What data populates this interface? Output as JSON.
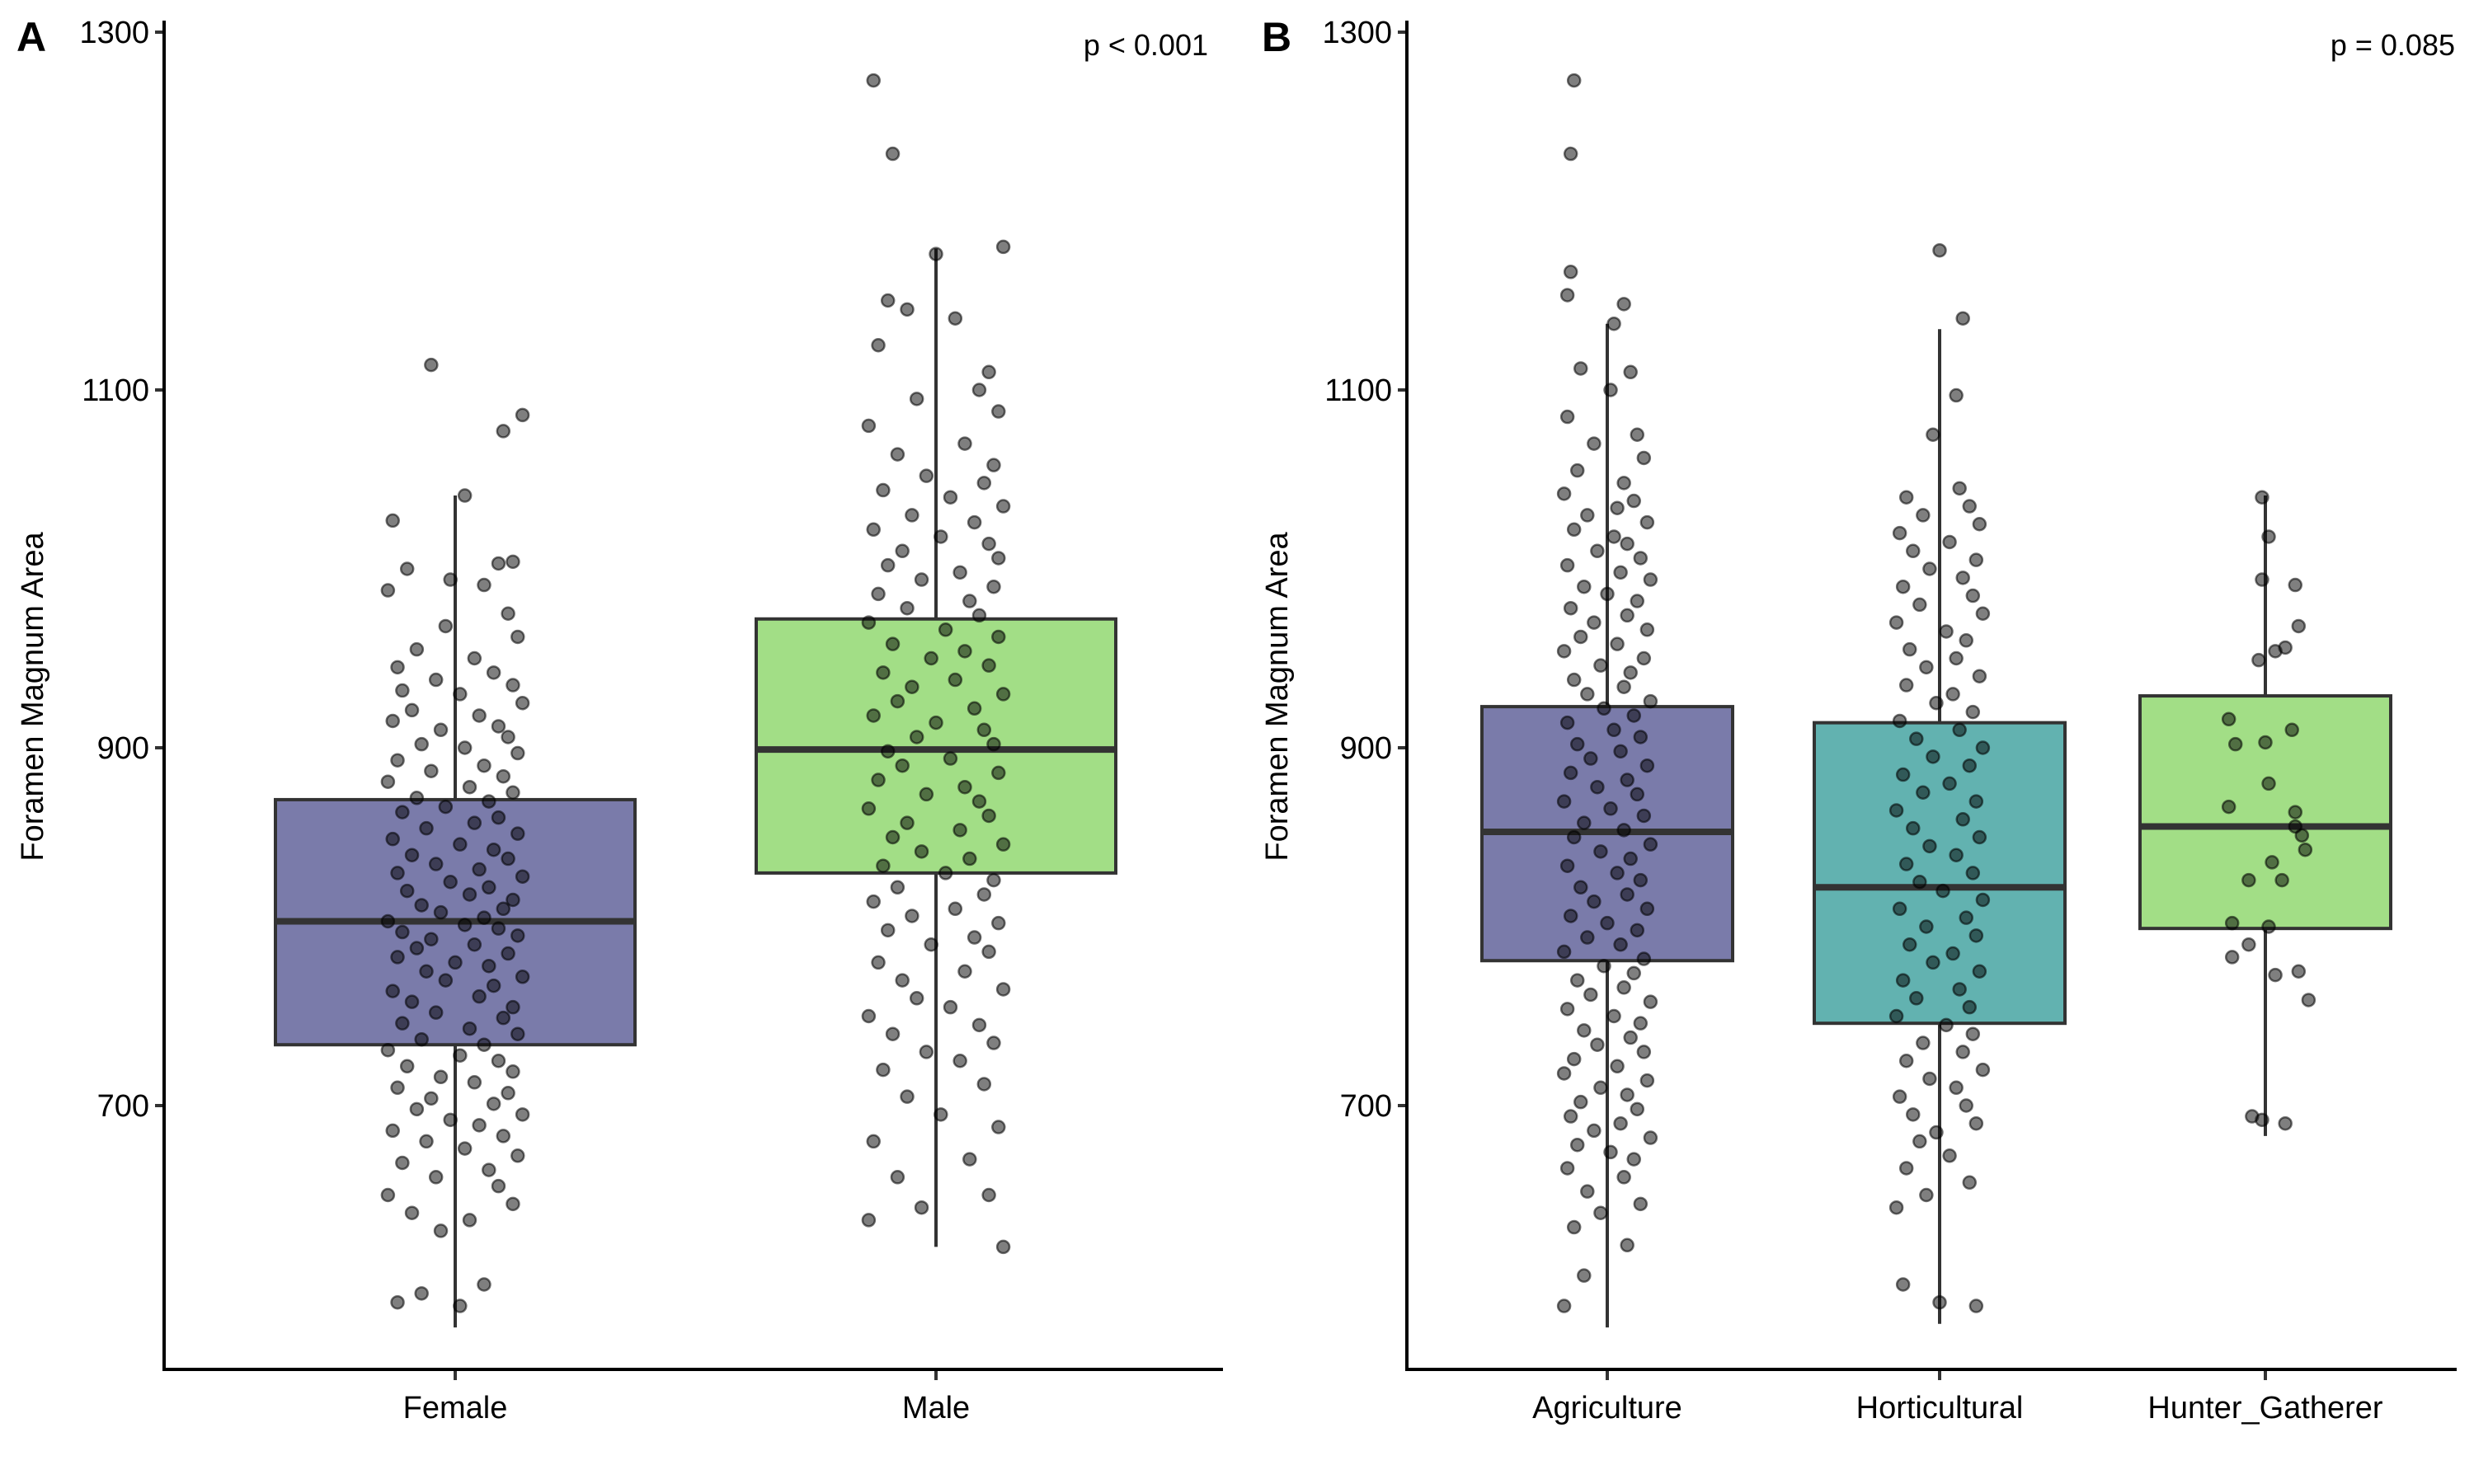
{
  "chart_data": [
    {
      "type": "box",
      "panel_label": "A",
      "annotation": "p < 0.001",
      "xlabel": "",
      "ylabel": "Foramen Magnum Area",
      "ylim": [
        553,
        1306
      ],
      "yticks": [
        700,
        900,
        1100,
        1300
      ],
      "ytick_labels": [
        "700",
        "900",
        "1100",
        "1300"
      ],
      "grid": false,
      "legend": "none",
      "categories": [
        "Female",
        "Male"
      ],
      "colors": [
        "#7A7BAA",
        "#A2DE86"
      ],
      "boxes": [
        {
          "name": "Female",
          "whisker_low": 576,
          "q1": 734,
          "median": 803,
          "q3": 871,
          "whisker_high": 1041
        },
        {
          "name": "Male",
          "whisker_low": 621,
          "q1": 830,
          "median": 899,
          "q3": 972,
          "whisker_high": 1179
        }
      ],
      "points": [
        {
          "group": "Female",
          "values": [
            1114,
            1086,
            1077,
            1041,
            1027,
            1004,
            1003,
            1000,
            994,
            991,
            988,
            975,
            968,
            962,
            955,
            950,
            945,
            942,
            938,
            935,
            932,
            930,
            925,
            921,
            918,
            915,
            912,
            910,
            906,
            902,
            900,
            897,
            893,
            890,
            887,
            884,
            881,
            878,
            875,
            872,
            870,
            867,
            864,
            861,
            858,
            855,
            852,
            849,
            846,
            843,
            840,
            838,
            835,
            832,
            830,
            828,
            825,
            822,
            820,
            818,
            815,
            812,
            810,
            808,
            805,
            803,
            801,
            799,
            797,
            795,
            793,
            790,
            788,
            785,
            783,
            780,
            778,
            775,
            772,
            770,
            767,
            764,
            761,
            758,
            755,
            752,
            749,
            746,
            743,
            740,
            737,
            734,
            731,
            728,
            725,
            722,
            719,
            716,
            713,
            710,
            707,
            704,
            701,
            698,
            695,
            692,
            689,
            686,
            683,
            680,
            676,
            672,
            668,
            664,
            660,
            655,
            650,
            645,
            640,
            636,
            630,
            600,
            595,
            590,
            588
          ],
          "jitter": [
            -0.05,
            0.14,
            0.1,
            0.02,
            -0.13,
            0.12,
            0.09,
            -0.1,
            -0.01,
            0.06,
            -0.14,
            0.11,
            -0.02,
            0.13,
            -0.08,
            0.04,
            -0.12,
            0.08,
            -0.04,
            0.12,
            -0.11,
            0.01,
            0.14,
            -0.09,
            0.05,
            -0.13,
            0.09,
            -0.03,
            0.11,
            -0.07,
            0.02,
            0.13,
            -0.12,
            0.06,
            -0.05,
            0.1,
            -0.14,
            0.03,
            0.12,
            -0.08,
            0.07,
            -0.02,
            -0.11,
            0.09,
            0.04,
            -0.06,
            0.13,
            -0.13,
            0.01,
            0.08,
            -0.09,
            0.11,
            -0.04,
            0.05,
            -0.12,
            0.14,
            -0.01,
            0.07,
            -0.1,
            0.03,
            0.12,
            -0.07,
            0.1,
            -0.03,
            0.06,
            -0.14,
            0.02,
            0.09,
            -0.11,
            0.13,
            -0.05,
            0.04,
            -0.08,
            0.11,
            -0.12,
            0.0,
            0.07,
            -0.06,
            0.14,
            -0.02,
            0.08,
            -0.13,
            0.05,
            -0.09,
            0.12,
            -0.04,
            0.1,
            -0.11,
            0.03,
            0.13,
            -0.07,
            0.06,
            -0.14,
            0.01,
            0.09,
            -0.1,
            0.12,
            -0.03,
            0.04,
            -0.12,
            0.11,
            -0.05,
            0.08,
            -0.08,
            0.14,
            -0.01,
            0.05,
            -0.13,
            0.1,
            -0.06,
            0.02,
            0.13,
            -0.11,
            0.07,
            -0.04,
            0.09,
            -0.14,
            0.12,
            -0.09,
            0.03,
            -0.03,
            0.06,
            -0.07,
            -0.12,
            0.01
          ]
        },
        {
          "group": "Male",
          "values": [
            1273,
            1232,
            1180,
            1176,
            1150,
            1145,
            1140,
            1125,
            1110,
            1100,
            1095,
            1088,
            1080,
            1070,
            1064,
            1058,
            1052,
            1048,
            1044,
            1040,
            1035,
            1030,
            1026,
            1022,
            1018,
            1014,
            1010,
            1006,
            1002,
            998,
            994,
            990,
            986,
            982,
            978,
            974,
            970,
            966,
            962,
            958,
            954,
            950,
            946,
            942,
            938,
            934,
            930,
            926,
            922,
            918,
            914,
            910,
            906,
            902,
            898,
            894,
            890,
            886,
            882,
            878,
            874,
            870,
            866,
            862,
            858,
            854,
            850,
            846,
            842,
            838,
            834,
            830,
            826,
            822,
            818,
            814,
            810,
            806,
            802,
            798,
            794,
            790,
            786,
            780,
            775,
            770,
            765,
            760,
            755,
            750,
            745,
            740,
            735,
            730,
            725,
            720,
            712,
            705,
            695,
            688,
            680,
            670,
            660,
            650,
            643,
            636,
            621
          ],
          "jitter": [
            -0.13,
            -0.09,
            0.14,
            0.0,
            -0.1,
            -0.06,
            0.04,
            -0.12,
            0.11,
            0.09,
            -0.04,
            0.13,
            -0.14,
            0.06,
            -0.08,
            0.12,
            -0.02,
            0.1,
            -0.11,
            0.03,
            0.14,
            -0.05,
            0.08,
            -0.13,
            0.01,
            0.11,
            -0.07,
            0.13,
            -0.1,
            0.05,
            -0.03,
            0.12,
            -0.12,
            0.07,
            -0.06,
            0.09,
            -0.14,
            0.02,
            0.13,
            -0.09,
            0.06,
            -0.01,
            0.11,
            -0.11,
            0.04,
            -0.05,
            0.14,
            -0.08,
            0.08,
            -0.13,
            0.0,
            0.1,
            -0.04,
            0.12,
            -0.1,
            0.03,
            -0.07,
            0.13,
            -0.12,
            0.06,
            -0.02,
            0.09,
            -0.14,
            0.11,
            -0.06,
            0.05,
            -0.09,
            0.14,
            -0.03,
            0.07,
            -0.11,
            0.02,
            0.12,
            -0.08,
            0.1,
            -0.13,
            0.04,
            -0.05,
            0.13,
            -0.1,
            0.08,
            -0.01,
            0.11,
            -0.12,
            0.06,
            -0.07,
            0.14,
            -0.04,
            0.03,
            -0.14,
            0.09,
            -0.09,
            0.12,
            -0.02,
            0.05,
            -0.11,
            0.1,
            -0.06,
            0.01,
            0.13,
            -0.13,
            0.07,
            -0.08,
            0.11,
            -0.03,
            -0.14,
            0.14
          ]
        }
      ]
    },
    {
      "type": "box",
      "panel_label": "B",
      "annotation": "p = 0.085",
      "xlabel": "",
      "ylabel": "Foramen Magnum Area",
      "ylim": [
        553,
        1306
      ],
      "yticks": [
        700,
        900,
        1100,
        1300
      ],
      "ytick_labels": [
        "700",
        "900",
        "1100",
        "1300"
      ],
      "grid": false,
      "legend": "none",
      "categories": [
        "Agriculture",
        "Horticultural",
        "Hunter_Gatherer"
      ],
      "colors": [
        "#7A7BAA",
        "#62B2B0",
        "#A2DE86"
      ],
      "boxes": [
        {
          "name": "Agriculture",
          "whisker_low": 576,
          "q1": 781,
          "median": 853,
          "q3": 923,
          "whisker_high": 1137
        },
        {
          "name": "Horticultural",
          "whisker_low": 578,
          "q1": 746,
          "median": 822,
          "q3": 914,
          "whisker_high": 1134
        },
        {
          "name": "Hunter_Gatherer",
          "whisker_low": 683,
          "q1": 799,
          "median": 856,
          "q3": 929,
          "whisker_high": 1041
        }
      ],
      "points": [
        {
          "group": "Agriculture",
          "values": [
            1273,
            1232,
            1166,
            1153,
            1148,
            1137,
            1112,
            1110,
            1100,
            1085,
            1075,
            1070,
            1062,
            1055,
            1048,
            1042,
            1038,
            1034,
            1030,
            1026,
            1022,
            1018,
            1014,
            1010,
            1006,
            1002,
            998,
            994,
            990,
            986,
            982,
            978,
            974,
            970,
            966,
            962,
            958,
            954,
            950,
            946,
            942,
            938,
            934,
            930,
            926,
            922,
            918,
            914,
            910,
            906,
            902,
            898,
            894,
            890,
            886,
            882,
            878,
            874,
            870,
            866,
            862,
            858,
            854,
            850,
            846,
            842,
            838,
            834,
            830,
            826,
            822,
            818,
            814,
            810,
            806,
            802,
            798,
            794,
            790,
            786,
            782,
            778,
            774,
            770,
            766,
            762,
            758,
            754,
            750,
            746,
            742,
            738,
            734,
            730,
            726,
            722,
            718,
            714,
            710,
            706,
            702,
            698,
            694,
            690,
            686,
            682,
            678,
            674,
            670,
            665,
            660,
            652,
            645,
            640,
            632,
            622,
            605,
            588
          ],
          "jitter": [
            -0.1,
            -0.11,
            -0.11,
            -0.12,
            0.05,
            0.02,
            -0.08,
            0.07,
            0.01,
            -0.12,
            0.09,
            -0.04,
            0.11,
            -0.09,
            0.05,
            -0.13,
            0.08,
            0.03,
            -0.06,
            0.12,
            -0.1,
            0.02,
            0.06,
            -0.03,
            0.1,
            -0.12,
            0.04,
            0.13,
            -0.07,
            0.0,
            0.09,
            -0.11,
            0.06,
            -0.04,
            0.12,
            -0.08,
            0.03,
            -0.13,
            0.11,
            -0.02,
            0.07,
            -0.1,
            0.05,
            -0.06,
            0.13,
            -0.01,
            0.08,
            -0.12,
            0.02,
            0.1,
            -0.09,
            0.04,
            -0.05,
            0.12,
            -0.11,
            0.06,
            -0.03,
            0.09,
            -0.13,
            0.01,
            0.11,
            -0.07,
            0.05,
            -0.1,
            0.13,
            -0.02,
            0.07,
            -0.12,
            0.03,
            0.1,
            -0.08,
            0.06,
            -0.04,
            0.12,
            -0.11,
            0.0,
            0.09,
            -0.06,
            0.04,
            -0.13,
            0.11,
            -0.01,
            0.08,
            -0.09,
            0.05,
            -0.05,
            0.13,
            -0.12,
            0.02,
            0.1,
            -0.07,
            0.07,
            -0.03,
            0.11,
            -0.1,
            0.03,
            -0.13,
            0.12,
            -0.02,
            0.06,
            -0.08,
            0.09,
            -0.11,
            0.04,
            -0.04,
            0.13,
            -0.09,
            0.01,
            0.08,
            -0.12,
            0.05,
            -0.06,
            0.1,
            -0.02,
            -0.1,
            0.06,
            -0.07,
            -0.13,
            0.07,
            -0.11
          ]
        },
        {
          "group": "Horticultural",
          "values": [
            1178,
            1140,
            1097,
            1075,
            1045,
            1040,
            1035,
            1030,
            1025,
            1020,
            1015,
            1010,
            1005,
            1000,
            995,
            990,
            985,
            980,
            975,
            970,
            965,
            960,
            955,
            950,
            945,
            940,
            935,
            930,
            925,
            920,
            915,
            910,
            905,
            900,
            895,
            890,
            885,
            880,
            875,
            870,
            865,
            860,
            855,
            850,
            845,
            840,
            835,
            830,
            825,
            820,
            815,
            810,
            805,
            800,
            795,
            790,
            785,
            780,
            775,
            770,
            765,
            760,
            755,
            750,
            745,
            740,
            735,
            730,
            725,
            720,
            715,
            710,
            705,
            700,
            695,
            690,
            685,
            680,
            672,
            665,
            657,
            650,
            643,
            600,
            590,
            588
          ],
          "jitter": [
            0.0,
            0.07,
            0.05,
            -0.02,
            0.06,
            -0.1,
            0.09,
            -0.05,
            0.12,
            -0.12,
            0.03,
            -0.08,
            0.11,
            -0.03,
            0.07,
            -0.11,
            0.1,
            -0.06,
            0.13,
            -0.13,
            0.02,
            0.08,
            -0.09,
            0.05,
            -0.04,
            0.12,
            -0.1,
            0.04,
            -0.01,
            0.1,
            -0.12,
            0.06,
            -0.07,
            0.13,
            -0.02,
            0.09,
            -0.11,
            0.03,
            -0.05,
            0.11,
            -0.13,
            0.07,
            -0.08,
            0.12,
            -0.03,
            0.05,
            -0.1,
            0.1,
            -0.06,
            0.01,
            0.13,
            -0.12,
            0.08,
            -0.04,
            0.11,
            -0.09,
            0.04,
            -0.02,
            0.12,
            -0.11,
            0.06,
            -0.07,
            0.09,
            -0.13,
            0.02,
            0.1,
            -0.05,
            0.07,
            -0.1,
            0.13,
            -0.03,
            0.05,
            -0.12,
            0.08,
            -0.08,
            0.11,
            -0.01,
            -0.06,
            0.03,
            -0.1,
            0.09,
            -0.04,
            -0.13,
            -0.11,
            0.0,
            0.11
          ]
        },
        {
          "group": "Hunter_Gatherer",
          "values": [
            1040,
            1018,
            994,
            991,
            968,
            956,
            954,
            949,
            916,
            910,
            903,
            902,
            880,
            867,
            864,
            856,
            851,
            843,
            836,
            826,
            826,
            802,
            800,
            790,
            783,
            775,
            773,
            759,
            694,
            692,
            690
          ],
          "jitter": [
            -0.01,
            0.01,
            -0.01,
            0.09,
            0.1,
            0.06,
            0.03,
            -0.02,
            -0.11,
            0.08,
            0.0,
            -0.09,
            0.01,
            -0.11,
            0.09,
            0.09,
            0.11,
            0.12,
            0.02,
            -0.05,
            0.05,
            -0.1,
            0.01,
            -0.05,
            -0.1,
            0.1,
            0.03,
            0.13,
            -0.04,
            -0.01,
            0.06
          ]
        }
      ]
    }
  ]
}
